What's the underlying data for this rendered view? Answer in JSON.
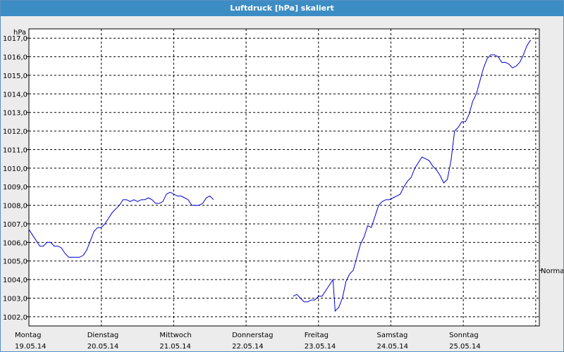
{
  "window": {
    "title": "Luftdruck [hPa] skaliert"
  },
  "chart_data": {
    "type": "line",
    "title": "Luftdruck [hPa] skaliert",
    "ylabel": "hPa",
    "ylim": [
      1001.5,
      1017.5
    ],
    "y_ticks": [
      "1002,0",
      "1003,0",
      "1004,0",
      "1005,0",
      "1006,0",
      "1007,0",
      "1008,0",
      "1009,0",
      "1010,0",
      "1011,0",
      "1012,0",
      "1013,0",
      "1014,0",
      "1015,0",
      "1016,0",
      "1017,0"
    ],
    "x_ticks": [
      {
        "day": "Montag",
        "date": "19.05.14"
      },
      {
        "day": "Dienstag",
        "date": "20.05.14"
      },
      {
        "day": "Mittwoch",
        "date": "21.05.14"
      },
      {
        "day": "Donnerstag",
        "date": "22.05.14"
      },
      {
        "day": "Freitag",
        "date": "23.05.14"
      },
      {
        "day": "Samstag",
        "date": "24.05.14"
      },
      {
        "day": "Sonntag",
        "date": "25.05.14"
      }
    ],
    "xlim_days": [
      0,
      7.05
    ],
    "grid": true,
    "line_color": "#0000cc",
    "reference_label": "Normal",
    "reference_value": 1004.5,
    "series": [
      {
        "segments": [
          [
            [
              0.0,
              1006.7
            ],
            [
              0.05,
              1006.4
            ],
            [
              0.1,
              1006.1
            ],
            [
              0.15,
              1005.8
            ],
            [
              0.2,
              1005.8
            ],
            [
              0.25,
              1006.0
            ],
            [
              0.3,
              1006.0
            ],
            [
              0.35,
              1005.8
            ],
            [
              0.4,
              1005.8
            ],
            [
              0.45,
              1005.7
            ],
            [
              0.5,
              1005.4
            ],
            [
              0.55,
              1005.2
            ],
            [
              0.6,
              1005.2
            ],
            [
              0.65,
              1005.2
            ],
            [
              0.7,
              1005.2
            ],
            [
              0.75,
              1005.3
            ],
            [
              0.8,
              1005.6
            ],
            [
              0.85,
              1006.1
            ],
            [
              0.9,
              1006.6
            ],
            [
              0.95,
              1006.8
            ],
            [
              1.0,
              1006.8
            ],
            [
              1.05,
              1007.0
            ],
            [
              1.1,
              1007.3
            ],
            [
              1.15,
              1007.6
            ],
            [
              1.2,
              1007.8
            ],
            [
              1.25,
              1008.0
            ],
            [
              1.3,
              1008.3
            ],
            [
              1.35,
              1008.3
            ],
            [
              1.4,
              1008.2
            ],
            [
              1.45,
              1008.3
            ],
            [
              1.5,
              1008.2
            ],
            [
              1.55,
              1008.3
            ],
            [
              1.6,
              1008.3
            ],
            [
              1.65,
              1008.4
            ],
            [
              1.7,
              1008.3
            ],
            [
              1.75,
              1008.1
            ],
            [
              1.8,
              1008.1
            ],
            [
              1.85,
              1008.2
            ],
            [
              1.9,
              1008.6
            ],
            [
              1.95,
              1008.7
            ],
            [
              2.0,
              1008.6
            ],
            [
              2.05,
              1008.5
            ],
            [
              2.1,
              1008.5
            ],
            [
              2.15,
              1008.4
            ],
            [
              2.2,
              1008.3
            ],
            [
              2.25,
              1008.0
            ],
            [
              2.3,
              1008.0
            ],
            [
              2.35,
              1008.0
            ],
            [
              2.4,
              1008.1
            ],
            [
              2.45,
              1008.4
            ],
            [
              2.5,
              1008.5
            ],
            [
              2.55,
              1008.3
            ]
          ],
          [
            [
              3.65,
              1003.1
            ],
            [
              3.7,
              1003.2
            ],
            [
              3.75,
              1003.0
            ],
            [
              3.8,
              1002.8
            ],
            [
              3.85,
              1002.8
            ],
            [
              3.9,
              1002.9
            ],
            [
              3.95,
              1002.9
            ],
            [
              4.0,
              1003.1
            ],
            [
              4.05,
              1003.1
            ],
            [
              4.1,
              1003.4
            ],
            [
              4.15,
              1003.7
            ],
            [
              4.2,
              1004.0
            ],
            [
              4.23,
              1002.3
            ],
            [
              4.28,
              1002.5
            ],
            [
              4.33,
              1003.0
            ],
            [
              4.38,
              1003.9
            ],
            [
              4.43,
              1004.3
            ],
            [
              4.48,
              1004.5
            ],
            [
              4.53,
              1005.2
            ],
            [
              4.58,
              1005.9
            ],
            [
              4.63,
              1006.3
            ],
            [
              4.68,
              1006.9
            ],
            [
              4.73,
              1006.8
            ],
            [
              4.78,
              1007.4
            ],
            [
              4.83,
              1008.0
            ],
            [
              4.88,
              1008.2
            ],
            [
              4.93,
              1008.3
            ],
            [
              4.98,
              1008.3
            ],
            [
              5.03,
              1008.4
            ],
            [
              5.08,
              1008.5
            ],
            [
              5.13,
              1008.6
            ],
            [
              5.18,
              1009.0
            ],
            [
              5.23,
              1009.3
            ],
            [
              5.28,
              1009.5
            ],
            [
              5.33,
              1010.0
            ],
            [
              5.38,
              1010.3
            ],
            [
              5.43,
              1010.6
            ],
            [
              5.48,
              1010.5
            ],
            [
              5.53,
              1010.4
            ],
            [
              5.58,
              1010.1
            ],
            [
              5.63,
              1009.9
            ],
            [
              5.68,
              1009.6
            ],
            [
              5.73,
              1009.2
            ],
            [
              5.78,
              1009.4
            ],
            [
              5.83,
              1010.4
            ],
            [
              5.88,
              1012.0
            ],
            [
              5.93,
              1012.2
            ],
            [
              5.98,
              1012.5
            ],
            [
              6.03,
              1012.5
            ],
            [
              6.08,
              1012.9
            ],
            [
              6.13,
              1013.6
            ],
            [
              6.18,
              1014.0
            ],
            [
              6.23,
              1014.7
            ],
            [
              6.28,
              1015.4
            ],
            [
              6.33,
              1015.9
            ],
            [
              6.38,
              1016.1
            ],
            [
              6.43,
              1016.1
            ],
            [
              6.48,
              1016.0
            ],
            [
              6.53,
              1015.7
            ],
            [
              6.58,
              1015.7
            ],
            [
              6.63,
              1015.6
            ],
            [
              6.68,
              1015.4
            ],
            [
              6.73,
              1015.5
            ],
            [
              6.78,
              1015.7
            ],
            [
              6.83,
              1016.1
            ],
            [
              6.88,
              1016.6
            ],
            [
              6.93,
              1016.9
            ]
          ]
        ]
      }
    ]
  }
}
